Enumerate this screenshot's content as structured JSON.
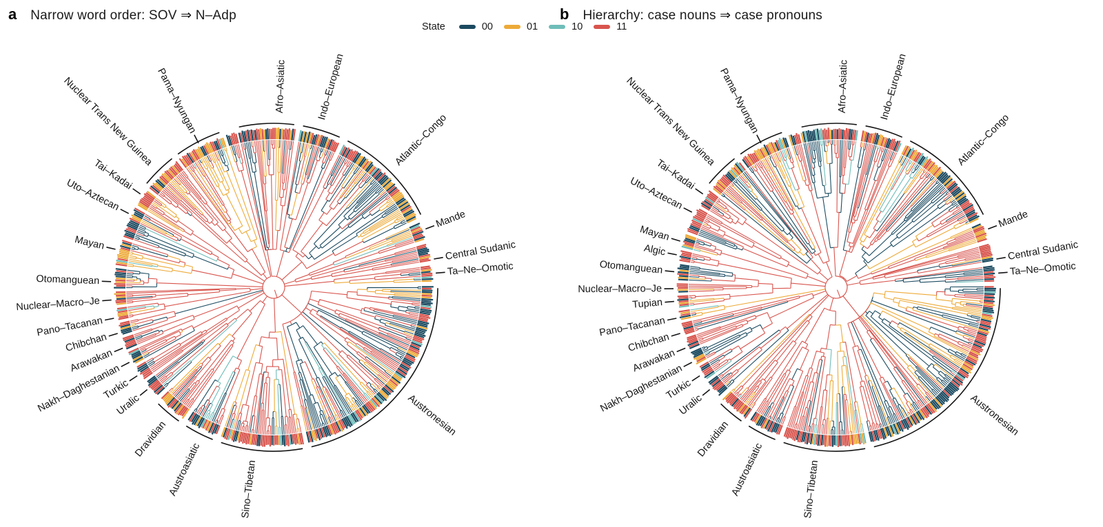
{
  "chart_data": {
    "type": "circular_phylogeny_pair",
    "description": "Two circular phylogenetic trees of world languages; branches coloured by reconstructed character-pair state (00/01/10/11); language families labelled around the rim.",
    "legend": {
      "label": "State",
      "entries": [
        {
          "label": "00",
          "color": "#1b4a60"
        },
        {
          "label": "01",
          "color": "#edaa38"
        },
        {
          "label": "10",
          "color": "#6fbdb9"
        },
        {
          "label": "11",
          "color": "#d8544d"
        }
      ]
    },
    "arc_color": "#141414",
    "panels": [
      {
        "id": "a",
        "letter": "a",
        "title": "Narrow word order: SOV ⇒ N–Adp",
        "families": [
          {
            "label": "Afro–Asiatic",
            "label_angle": 2,
            "span": [
              -13,
              8
            ],
            "marker": "arc",
            "state_mix": [
              0.33,
              0.12,
              0.04,
              0.51
            ]
          },
          {
            "label": "Indo–European",
            "label_angle": 16,
            "span": [
              9.5,
              24.5
            ],
            "marker": "arc",
            "state_mix": [
              0.45,
              0.1,
              0.05,
              0.4
            ]
          },
          {
            "label": "Atlantic–Congo",
            "label_angle": 45,
            "span": [
              26,
              64.5
            ],
            "marker": "arc",
            "state_mix": [
              0.42,
              0.28,
              0.05,
              0.25
            ]
          },
          {
            "label": "Mande",
            "label_angle": 69,
            "span": [
              66,
              72.5
            ],
            "marker": "tick",
            "deep": true,
            "state_mix": [
              0.15,
              0.55,
              0.05,
              0.25
            ]
          },
          {
            "label": "Central Sudanic",
            "label_angle": 80,
            "span": [
              74,
              80.5
            ],
            "marker": "tick",
            "deep": true,
            "state_mix": [
              0.22,
              0.33,
              0.05,
              0.4
            ]
          },
          {
            "label": "Ta–Ne–Omotic",
            "label_angle": 85,
            "span": [
              82,
              88
            ],
            "marker": "tick",
            "deep": true,
            "state_mix": [
              0.3,
              0.22,
              0.05,
              0.43
            ]
          },
          {
            "label": "Austronesian",
            "label_angle": 129,
            "span": [
              89.5,
              167.5
            ],
            "marker": "arc",
            "state_mix": [
              0.52,
              0.13,
              0.06,
              0.29
            ]
          },
          {
            "label": "Sino–Tibetan",
            "label_angle": 187,
            "span": [
              169,
              199.5
            ],
            "marker": "arc",
            "state_mix": [
              0.3,
              0.09,
              0.07,
              0.54
            ]
          },
          {
            "label": "Austroasiatic",
            "label_angle": 206,
            "span": [
              201,
              213
            ],
            "marker": "arc",
            "state_mix": [
              0.4,
              0.1,
              0.05,
              0.45
            ]
          },
          {
            "label": "Dravidian",
            "label_angle": 219,
            "span": [
              214.5,
              225.5
            ],
            "marker": "arc",
            "state_mix": [
              0.18,
              0.24,
              0.05,
              0.53
            ]
          },
          {
            "label": "Uralic",
            "label_angle": 231,
            "span": [
              227,
              233.5
            ],
            "marker": "tick",
            "state_mix": [
              0.48,
              0.1,
              0.05,
              0.37
            ]
          },
          {
            "label": "Turkic",
            "label_angle": 237,
            "span": [
              234.5,
              240
            ],
            "marker": "tick",
            "state_mix": [
              0.2,
              0.1,
              0.05,
              0.65
            ]
          },
          {
            "label": "Nakh–Daghestanian",
            "label_angle": 242.5,
            "span": [
              241,
              246
            ],
            "marker": "tick",
            "state_mix": [
              0.25,
              0.25,
              0.05,
              0.45
            ]
          },
          {
            "label": "Arawakan",
            "label_angle": 248,
            "span": [
              247,
              251.5
            ],
            "marker": "tick",
            "state_mix": [
              0.22,
              0.14,
              0.05,
              0.59
            ]
          },
          {
            "label": "Chibchan",
            "label_angle": 253.5,
            "span": [
              252.5,
              257
            ],
            "marker": "tick",
            "state_mix": [
              0.25,
              0.1,
              0.05,
              0.6
            ]
          },
          {
            "label": "Pano–Tacanan",
            "label_angle": 259,
            "span": [
              258,
              262.5
            ],
            "marker": "tick",
            "state_mix": [
              0.2,
              0.25,
              0.05,
              0.5
            ]
          },
          {
            "label": "Nuclear–Macro–Je",
            "label_angle": 265.5,
            "span": [
              263.5,
              268.5
            ],
            "marker": "tick",
            "state_mix": [
              0.25,
              0.15,
              0.05,
              0.55
            ]
          },
          {
            "label": "Otomanguean",
            "label_angle": 272,
            "span": [
              269.5,
              277
            ],
            "marker": "tick",
            "state_mix": [
              0.38,
              0.15,
              0.05,
              0.42
            ]
          },
          {
            "label": "Mayan",
            "label_angle": 283.5,
            "span": [
              278,
              287.5
            ],
            "marker": "tick",
            "state_mix": [
              0.33,
              0.26,
              0.05,
              0.36
            ]
          },
          {
            "label": "Uto–Aztecan",
            "label_angle": 297,
            "span": [
              288.5,
              300
            ],
            "marker": "tick",
            "state_mix": [
              0.34,
              0.16,
              0.09,
              0.41
            ]
          },
          {
            "label": "Tai–Kadai",
            "label_angle": 305,
            "span": [
              301,
              307.5
            ],
            "marker": "tick",
            "state_mix": [
              0.2,
              0.15,
              0.05,
              0.6
            ]
          },
          {
            "label": "Nuclear Trans New Guinea",
            "label_angle": 315,
            "span": [
              308.5,
              322.5
            ],
            "marker": "arc",
            "state_mix": [
              0.15,
              0.24,
              0.05,
              0.56
            ]
          },
          {
            "label": "Pama–Nyungan",
            "label_angle": 332.5,
            "span": [
              323.5,
              341.5
            ],
            "marker": "arc,tick",
            "state_mix": [
              0.2,
              0.3,
              0.05,
              0.45
            ]
          },
          {
            "label": "",
            "label_angle": 344.5,
            "span": [
              342.5,
              346.5
            ],
            "marker": "none",
            "state_mix": [
              0.3,
              0.2,
              0.05,
              0.45
            ]
          }
        ]
      },
      {
        "id": "b",
        "letter": "b",
        "title": "Hierarchy: case nouns ⇒ case pronouns",
        "families": [
          {
            "label": "Afro–Asiatic",
            "label_angle": 2,
            "span": [
              -13,
              8
            ],
            "marker": "arc",
            "state_mix": [
              0.33,
              0.14,
              0.04,
              0.49
            ]
          },
          {
            "label": "Indo–European",
            "label_angle": 16,
            "span": [
              9.5,
              24.5
            ],
            "marker": "arc",
            "state_mix": [
              0.42,
              0.12,
              0.05,
              0.41
            ]
          },
          {
            "label": "Atlantic–Congo",
            "label_angle": 45,
            "span": [
              26,
              64.5
            ],
            "marker": "arc",
            "state_mix": [
              0.42,
              0.28,
              0.05,
              0.25
            ]
          },
          {
            "label": "Mande",
            "label_angle": 69,
            "span": [
              66,
              72.5
            ],
            "marker": "tick",
            "deep": true,
            "state_mix": [
              0.15,
              0.55,
              0.05,
              0.25
            ]
          },
          {
            "label": "Central Sudanic",
            "label_angle": 80,
            "span": [
              74,
              80.5
            ],
            "marker": "tick",
            "deep": true,
            "state_mix": [
              0.22,
              0.33,
              0.05,
              0.4
            ]
          },
          {
            "label": "Ta–Ne–Omotic",
            "label_angle": 85,
            "span": [
              82,
              88
            ],
            "marker": "tick",
            "deep": true,
            "state_mix": [
              0.3,
              0.22,
              0.05,
              0.43
            ]
          },
          {
            "label": "Austronesian",
            "label_angle": 129,
            "span": [
              89.5,
              167.5
            ],
            "marker": "arc",
            "state_mix": [
              0.48,
              0.18,
              0.05,
              0.29
            ]
          },
          {
            "label": "Sino–Tibetan",
            "label_angle": 187,
            "span": [
              169,
              199.5
            ],
            "marker": "arc",
            "state_mix": [
              0.3,
              0.11,
              0.06,
              0.53
            ]
          },
          {
            "label": "Austroasiatic",
            "label_angle": 206,
            "span": [
              201,
              213
            ],
            "marker": "arc",
            "state_mix": [
              0.38,
              0.12,
              0.05,
              0.45
            ]
          },
          {
            "label": "Dravidian",
            "label_angle": 219,
            "span": [
              214.5,
              225.5
            ],
            "marker": "arc",
            "state_mix": [
              0.15,
              0.3,
              0.05,
              0.5
            ]
          },
          {
            "label": "Uralic",
            "label_angle": 231,
            "span": [
              227,
              233.5
            ],
            "marker": "tick",
            "state_mix": [
              0.48,
              0.1,
              0.05,
              0.37
            ]
          },
          {
            "label": "Turkic",
            "label_angle": 237,
            "span": [
              234.5,
              240
            ],
            "marker": "tick",
            "state_mix": [
              0.2,
              0.1,
              0.05,
              0.65
            ]
          },
          {
            "label": "Nakh–Daghestanian",
            "label_angle": 242.5,
            "span": [
              241,
              246
            ],
            "marker": "tick",
            "state_mix": [
              0.25,
              0.25,
              0.05,
              0.45
            ]
          },
          {
            "label": "Arawakan",
            "label_angle": 248,
            "span": [
              247,
              251.5
            ],
            "marker": "tick",
            "state_mix": [
              0.22,
              0.14,
              0.05,
              0.59
            ]
          },
          {
            "label": "Chibchan",
            "label_angle": 253.5,
            "span": [
              252.5,
              257
            ],
            "marker": "tick",
            "state_mix": [
              0.25,
              0.1,
              0.05,
              0.6
            ]
          },
          {
            "label": "Pano–Tacanan",
            "label_angle": 259,
            "span": [
              258,
              261.5
            ],
            "marker": "tick",
            "state_mix": [
              0.2,
              0.25,
              0.05,
              0.5
            ]
          },
          {
            "label": "Tupian",
            "label_angle": 265,
            "span": [
              262.5,
              267
            ],
            "marker": "tick",
            "state_mix": [
              0.25,
              0.25,
              0.05,
              0.45
            ]
          },
          {
            "label": "Nuclear–Macro–Je",
            "label_angle": 269.5,
            "span": [
              268,
              271.5
            ],
            "marker": "tick",
            "state_mix": [
              0.25,
              0.15,
              0.05,
              0.55
            ]
          },
          {
            "label": "Otomanguean",
            "label_angle": 275.5,
            "span": [
              272.5,
              278.5
            ],
            "marker": "tick",
            "state_mix": [
              0.38,
              0.18,
              0.05,
              0.39
            ]
          },
          {
            "label": "Algic",
            "label_angle": 281.5,
            "span": [
              279.5,
              283.5
            ],
            "marker": "tick",
            "state_mix": [
              0.3,
              0.2,
              0.05,
              0.45
            ]
          },
          {
            "label": "Mayan",
            "label_angle": 286.5,
            "span": [
              284.5,
              289.5
            ],
            "marker": "tick",
            "state_mix": [
              0.33,
              0.26,
              0.05,
              0.36
            ]
          },
          {
            "label": "Uto–Aztecan",
            "label_angle": 297.5,
            "span": [
              290.5,
              300
            ],
            "marker": "tick",
            "state_mix": [
              0.34,
              0.16,
              0.09,
              0.41
            ]
          },
          {
            "label": "Tai–Kadai",
            "label_angle": 305,
            "span": [
              301,
              307.5
            ],
            "marker": "tick",
            "state_mix": [
              0.2,
              0.15,
              0.05,
              0.6
            ]
          },
          {
            "label": "Nuclear Trans New Guinea",
            "label_angle": 315,
            "span": [
              308.5,
              322.5
            ],
            "marker": "arc",
            "state_mix": [
              0.18,
              0.28,
              0.04,
              0.5
            ]
          },
          {
            "label": "Pama–Nyungan",
            "label_angle": 332.5,
            "span": [
              323.5,
              341.5
            ],
            "marker": "arc,tick",
            "state_mix": [
              0.2,
              0.3,
              0.05,
              0.45
            ]
          },
          {
            "label": "",
            "label_angle": 344.5,
            "span": [
              342.5,
              346.5
            ],
            "marker": "none",
            "state_mix": [
              0.3,
              0.2,
              0.05,
              0.45
            ]
          }
        ]
      }
    ]
  }
}
